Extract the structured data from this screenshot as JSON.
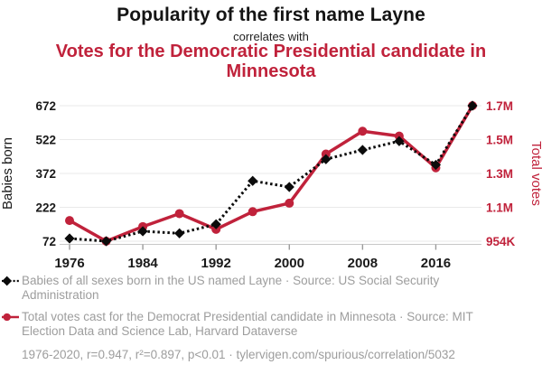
{
  "page": {
    "title": "Popularity of the first name Layne",
    "connector": "correlates with",
    "subtitle": "Votes for the Democratic Presidential candidate in Minnesota"
  },
  "colors": {
    "accent": "#c0223b",
    "series_black": "#0b0b0b",
    "muted_text": "#9d9d9d",
    "gridline": "#eaeaea",
    "axis_line": "#c8c8c8",
    "tick_mark": "#9a9a9a",
    "tick_text": "#1a1a1a"
  },
  "chart_data": {
    "type": "line",
    "x": [
      1976,
      1980,
      1984,
      1988,
      1992,
      1996,
      2000,
      2004,
      2008,
      2012,
      2016,
      2020
    ],
    "x_axis": {
      "ticks": [
        1976,
        1984,
        1992,
        2000,
        2008,
        2016
      ],
      "range": [
        1976,
        2020
      ]
    },
    "left_axis": {
      "label": "Babies born",
      "ticks": [
        72,
        222,
        372,
        522,
        672
      ],
      "range": [
        72,
        672
      ]
    },
    "right_axis": {
      "label": "Total votes",
      "tick_labels": [
        "954K",
        "1.1M",
        "1.3M",
        "1.5M",
        "1.7M"
      ],
      "range": [
        954174,
        1717077
      ]
    },
    "grid": "horizontal",
    "legend_position": "bottom",
    "series": [
      {
        "name": "Babies of all sexes born in the US named Layne",
        "axis": "left",
        "marker": "diamond",
        "line_style": "dashed",
        "color": "#0b0b0b",
        "values": [
          84,
          72,
          116,
          107,
          147,
          339,
          312,
          435,
          476,
          515,
          410,
          672
        ]
      },
      {
        "name": "Total votes for the Democrat Presidential candidate in Minnesota",
        "axis": "right",
        "marker": "circle",
        "line_style": "solid",
        "color": "#c0223b",
        "values": [
          1070440,
          954174,
          1036364,
          1109471,
          1020997,
          1120438,
          1168266,
          1445014,
          1573354,
          1546167,
          1367716,
          1717077
        ]
      }
    ]
  },
  "legend": {
    "items": [
      {
        "label": "Babies of all sexes born in the US named Layne · Source: US Social Security Administration",
        "marker": "diamond-dashed"
      },
      {
        "label": "Total votes cast for the Democrat Presidential candidate in Minnesota · Source: MIT Election Data and Science Lab, Harvard Dataverse",
        "marker": "circle-solid"
      }
    ]
  },
  "footer": {
    "text": "1976-2020, r=0.947, r²=0.897, p<0.01 · tylervigen.com/spurious/correlation/5032"
  }
}
